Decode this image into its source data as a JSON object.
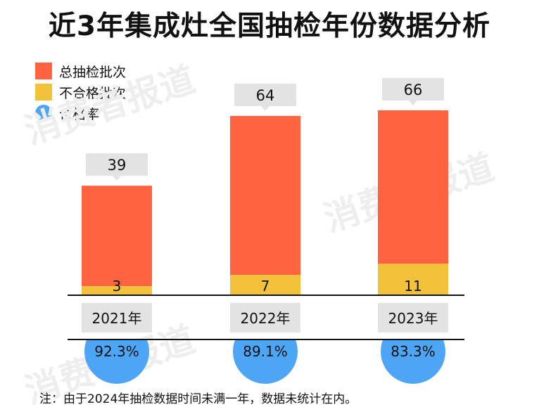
{
  "title": "近3年集成灶全国抽检年份数据分析",
  "legend": [
    {
      "label": "总抽检批次",
      "color": "#ff6340",
      "shape": "square"
    },
    {
      "label": "不合格批次",
      "color": "#f2c23a",
      "shape": "square"
    },
    {
      "label": "合格率",
      "color": "#4da6f5",
      "shape": "circle"
    }
  ],
  "watermark": "消费者报道",
  "footnote": "注：由于2024年抽检数据时间未满一年，数据未统计在内。",
  "chart_data": {
    "type": "bar",
    "stacked": true,
    "categories": [
      "2021年",
      "2022年",
      "2023年"
    ],
    "series": [
      {
        "name": "总抽检批次",
        "values": [
          39,
          64,
          66
        ],
        "color": "#ff6340"
      },
      {
        "name": "不合格批次",
        "values": [
          3,
          7,
          11
        ],
        "color": "#f2c23a"
      },
      {
        "name": "合格率",
        "values": [
          "92.3%",
          "89.1%",
          "83.3%"
        ],
        "color": "#4da6f5"
      }
    ],
    "ylim": [
      0,
      66
    ],
    "grid": false,
    "legend_position": "top-left"
  }
}
